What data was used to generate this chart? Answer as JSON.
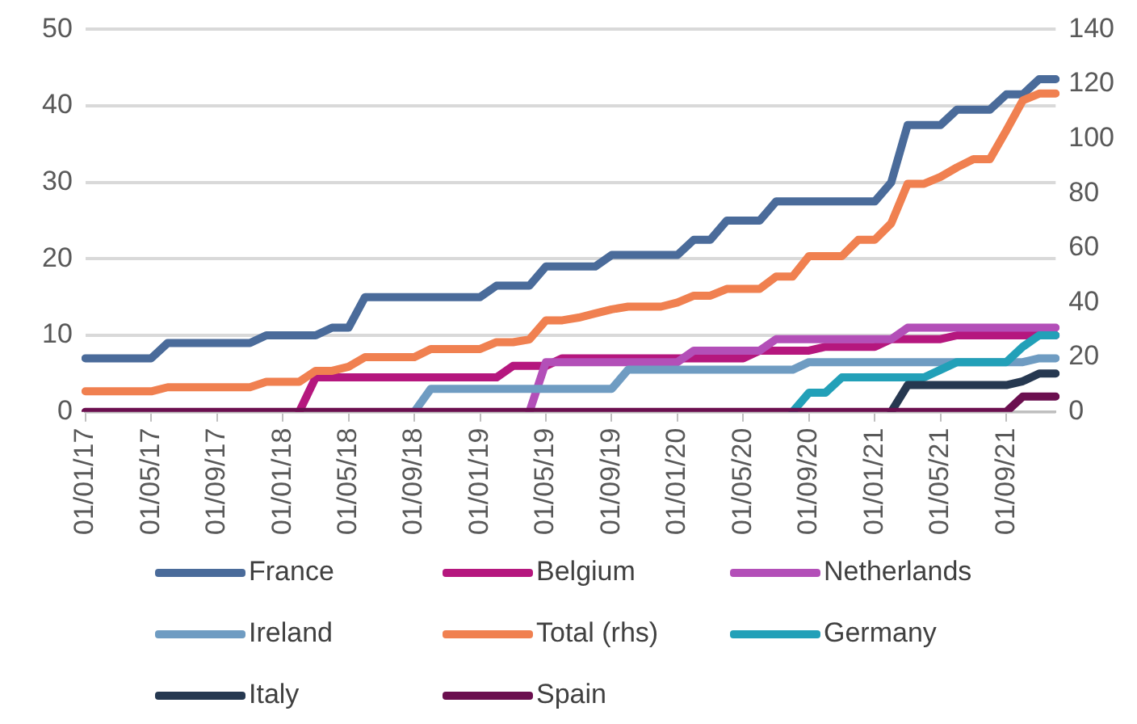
{
  "chart_data": {
    "type": "line",
    "categories": [
      "01/01/17",
      null,
      null,
      null,
      "01/05/17",
      null,
      null,
      null,
      "01/09/17",
      null,
      null,
      null,
      "01/01/18",
      null,
      null,
      null,
      "01/05/18",
      null,
      null,
      null,
      "01/09/18",
      null,
      null,
      null,
      "01/01/19",
      null,
      null,
      null,
      "01/05/19",
      null,
      null,
      null,
      "01/09/19",
      null,
      null,
      null,
      "01/01/20",
      null,
      null,
      null,
      "01/05/20",
      null,
      null,
      null,
      "01/09/20",
      null,
      null,
      null,
      "01/01/21",
      null,
      null,
      null,
      "01/05/21",
      null,
      null,
      null,
      "01/09/21",
      null,
      null,
      null
    ],
    "series": [
      {
        "name": "France",
        "color": "#4a6b9a",
        "values": [
          7,
          7,
          7,
          7,
          7,
          9,
          9,
          9,
          9,
          9,
          9,
          10,
          10,
          10,
          10,
          11,
          11,
          15,
          15,
          15,
          15,
          15,
          15,
          15,
          15,
          16.5,
          16.5,
          16.5,
          19,
          19,
          19,
          19,
          20.5,
          20.5,
          20.5,
          20.5,
          20.5,
          22.5,
          22.5,
          25,
          25,
          25,
          27.5,
          27.5,
          27.5,
          27.5,
          27.5,
          27.5,
          27.5,
          30,
          37.5,
          37.5,
          37.5,
          39.5,
          39.5,
          39.5,
          41.5,
          41.5,
          43.5,
          43.5
        ]
      },
      {
        "name": "Belgium",
        "color": "#b5177e",
        "values": [
          null,
          null,
          null,
          null,
          null,
          null,
          null,
          null,
          null,
          null,
          null,
          null,
          null,
          0,
          4.5,
          4.5,
          4.5,
          4.5,
          4.5,
          4.5,
          4.5,
          4.5,
          4.5,
          4.5,
          4.5,
          4.5,
          6,
          6,
          6,
          7,
          7,
          7,
          7,
          7,
          7,
          7,
          7,
          7,
          7,
          7,
          7,
          8,
          8,
          8,
          8,
          8.5,
          8.5,
          8.5,
          8.5,
          9.5,
          9.5,
          9.5,
          9.5,
          10,
          10,
          10,
          10,
          10,
          10,
          10
        ]
      },
      {
        "name": "Netherlands",
        "color": "#b34fb8",
        "values": [
          null,
          null,
          null,
          null,
          null,
          null,
          null,
          null,
          null,
          null,
          null,
          null,
          null,
          null,
          null,
          null,
          null,
          null,
          null,
          null,
          null,
          null,
          null,
          null,
          null,
          null,
          null,
          0,
          6.5,
          6.5,
          6.5,
          6.5,
          6.5,
          6.5,
          6.5,
          6.5,
          6.5,
          8,
          8,
          8,
          8,
          8,
          9.5,
          9.5,
          9.5,
          9.5,
          9.5,
          9.5,
          9.5,
          9.5,
          11,
          11,
          11,
          11,
          11,
          11,
          11,
          11,
          11,
          11
        ]
      },
      {
        "name": "Ireland",
        "color": "#6f9cc2",
        "values": [
          null,
          null,
          null,
          null,
          null,
          null,
          null,
          null,
          null,
          null,
          null,
          null,
          null,
          null,
          null,
          null,
          null,
          null,
          null,
          null,
          0,
          3,
          3,
          3,
          3,
          3,
          3,
          3,
          3,
          3,
          3,
          3,
          3,
          5.5,
          5.5,
          5.5,
          5.5,
          5.5,
          5.5,
          5.5,
          5.5,
          5.5,
          5.5,
          5.5,
          6.5,
          6.5,
          6.5,
          6.5,
          6.5,
          6.5,
          6.5,
          6.5,
          6.5,
          6.5,
          6.5,
          6.5,
          6.5,
          6.5,
          7,
          7
        ]
      },
      {
        "name": "Total (rhs)",
        "color": "#f08050",
        "axis": "y2",
        "values": [
          7.5,
          7.5,
          7.5,
          7.5,
          7.5,
          9,
          9,
          9,
          9,
          9,
          9,
          11,
          11,
          11,
          15,
          15,
          16.5,
          20,
          20,
          20,
          20,
          23,
          23,
          23,
          23,
          25.5,
          25.5,
          26.5,
          33.5,
          33.5,
          34.5,
          36,
          37.5,
          38.5,
          38.5,
          38.5,
          40,
          42.5,
          42.5,
          45,
          45,
          45,
          49.5,
          49.5,
          57,
          57,
          57,
          63,
          63,
          69,
          83.5,
          83.5,
          86,
          89.5,
          92.5,
          92.5,
          103,
          114,
          116.5,
          116.5
        ]
      },
      {
        "name": "Germany",
        "color": "#22a0b8",
        "values": [
          null,
          null,
          null,
          null,
          null,
          null,
          null,
          null,
          null,
          null,
          null,
          null,
          null,
          null,
          null,
          null,
          null,
          null,
          null,
          null,
          null,
          null,
          null,
          null,
          null,
          null,
          null,
          null,
          null,
          null,
          null,
          null,
          null,
          null,
          null,
          null,
          null,
          null,
          null,
          null,
          null,
          null,
          null,
          0,
          2.5,
          2.5,
          4.5,
          4.5,
          4.5,
          4.5,
          4.5,
          4.5,
          5.5,
          6.5,
          6.5,
          6.5,
          6.5,
          8.5,
          10,
          10
        ]
      },
      {
        "name": "Italy",
        "color": "#263850",
        "values": [
          null,
          null,
          null,
          null,
          null,
          null,
          null,
          null,
          null,
          null,
          null,
          null,
          null,
          null,
          null,
          null,
          null,
          null,
          null,
          null,
          null,
          null,
          null,
          null,
          null,
          null,
          null,
          null,
          null,
          null,
          null,
          null,
          null,
          null,
          null,
          null,
          null,
          null,
          null,
          null,
          null,
          null,
          null,
          null,
          null,
          null,
          null,
          null,
          null,
          0,
          3.5,
          3.5,
          3.5,
          3.5,
          3.5,
          3.5,
          3.5,
          4,
          5,
          5
        ]
      },
      {
        "name": "Spain",
        "color": "#6b0f4f",
        "values": [
          0,
          0,
          0,
          0,
          0,
          0,
          0,
          0,
          0,
          0,
          0,
          0,
          0,
          0,
          0,
          0,
          0,
          0,
          0,
          0,
          0,
          0,
          0,
          0,
          0,
          0,
          0,
          0,
          0,
          0,
          0,
          0,
          0,
          0,
          0,
          0,
          0,
          0,
          0,
          0,
          0,
          0,
          0,
          0,
          0,
          0,
          0,
          0,
          0,
          0,
          0,
          0,
          0,
          0,
          0,
          0,
          0,
          2,
          2,
          2
        ]
      }
    ],
    "ylim": [
      0,
      50
    ],
    "yticks": [
      0,
      10,
      20,
      30,
      40,
      50
    ],
    "y2lim": [
      0,
      140
    ],
    "y2ticks": [
      0,
      20,
      40,
      60,
      80,
      100,
      120,
      140
    ],
    "grid": "y",
    "legend": "bottom",
    "marker": "none",
    "line_style": "solid"
  }
}
